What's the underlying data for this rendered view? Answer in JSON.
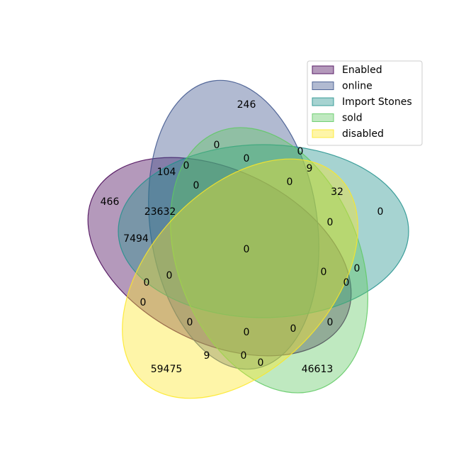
{
  "chart_data": {
    "type": "venn",
    "sets": [
      {
        "name": "Enabled",
        "color": "#440154"
      },
      {
        "name": "online",
        "color": "#3b528b"
      },
      {
        "name": "Import Stones",
        "color": "#21918c"
      },
      {
        "name": "sold",
        "color": "#5ec962"
      },
      {
        "name": "disabled",
        "color": "#fde725"
      }
    ],
    "regions": [
      {
        "sets": [
          "online"
        ],
        "value": "246"
      },
      {
        "sets": [
          "online",
          "sold"
        ],
        "value": "0"
      },
      {
        "sets": [
          "online",
          "Import Stones"
        ],
        "value": "0"
      },
      {
        "sets": [
          "online",
          "Import Stones",
          "sold"
        ],
        "value": "0"
      },
      {
        "sets": [
          "Enabled",
          "online"
        ],
        "value": "104"
      },
      {
        "sets": [
          "Enabled",
          "online",
          "sold"
        ],
        "value": "0"
      },
      {
        "sets": [
          "online",
          "Import Stones",
          "sold",
          "disabled"
        ],
        "value": "9"
      },
      {
        "sets": [
          "Enabled",
          "online",
          "Import Stones",
          "sold"
        ],
        "value": "0"
      },
      {
        "sets": [
          "online",
          "Import Stones",
          "disabled"
        ],
        "value": "0"
      },
      {
        "sets": [
          "Import Stones",
          "disabled"
        ],
        "value": "32"
      },
      {
        "sets": [
          "Enabled"
        ],
        "value": "466"
      },
      {
        "sets": [
          "Enabled",
          "online",
          "Import Stones"
        ],
        "value": "23632"
      },
      {
        "sets": [
          "Import Stones"
        ],
        "value": "0"
      },
      {
        "sets": [
          "Import Stones",
          "sold",
          "disabled"
        ],
        "value": "0"
      },
      {
        "sets": [
          "Enabled",
          "Import Stones"
        ],
        "value": "7494"
      },
      {
        "sets": [
          "Enabled",
          "online",
          "Import Stones",
          "sold",
          "disabled"
        ],
        "value": "0"
      },
      {
        "sets": [
          "Import Stones",
          "sold"
        ],
        "value": "0"
      },
      {
        "sets": [
          "Enabled",
          "Import Stones",
          "sold",
          "disabled"
        ],
        "value": "0"
      },
      {
        "sets": [
          "Enabled",
          "Import Stones",
          "disabled"
        ],
        "value": "0"
      },
      {
        "sets": [
          "Enabled",
          "Import Stones",
          "sold"
        ],
        "value": "0"
      },
      {
        "sets": [
          "Enabled",
          "online",
          "Import Stones",
          "disabled"
        ],
        "value": "0"
      },
      {
        "sets": [
          "Enabled",
          "disabled"
        ],
        "value": "0"
      },
      {
        "sets": [
          "Enabled",
          "online",
          "disabled"
        ],
        "value": "0"
      },
      {
        "sets": [
          "Enabled",
          "sold",
          "disabled"
        ],
        "value": "0"
      },
      {
        "sets": [
          "Enabled",
          "online",
          "sold",
          "disabled"
        ],
        "value": "0"
      },
      {
        "sets": [
          "Enabled",
          "sold"
        ],
        "value": "0"
      },
      {
        "sets": [
          "disabled"
        ],
        "value": "59475"
      },
      {
        "sets": [
          "online",
          "disabled"
        ],
        "value": "9"
      },
      {
        "sets": [
          "online",
          "sold",
          "disabled"
        ],
        "value": "0"
      },
      {
        "sets": [
          "sold",
          "disabled"
        ],
        "value": "0"
      },
      {
        "sets": [
          "sold"
        ],
        "value": "46613"
      }
    ],
    "legend": {
      "placement": "top-right",
      "entries": [
        "Enabled",
        "online",
        "Import Stones",
        "sold",
        "disabled"
      ]
    },
    "title": "",
    "grid": false
  }
}
